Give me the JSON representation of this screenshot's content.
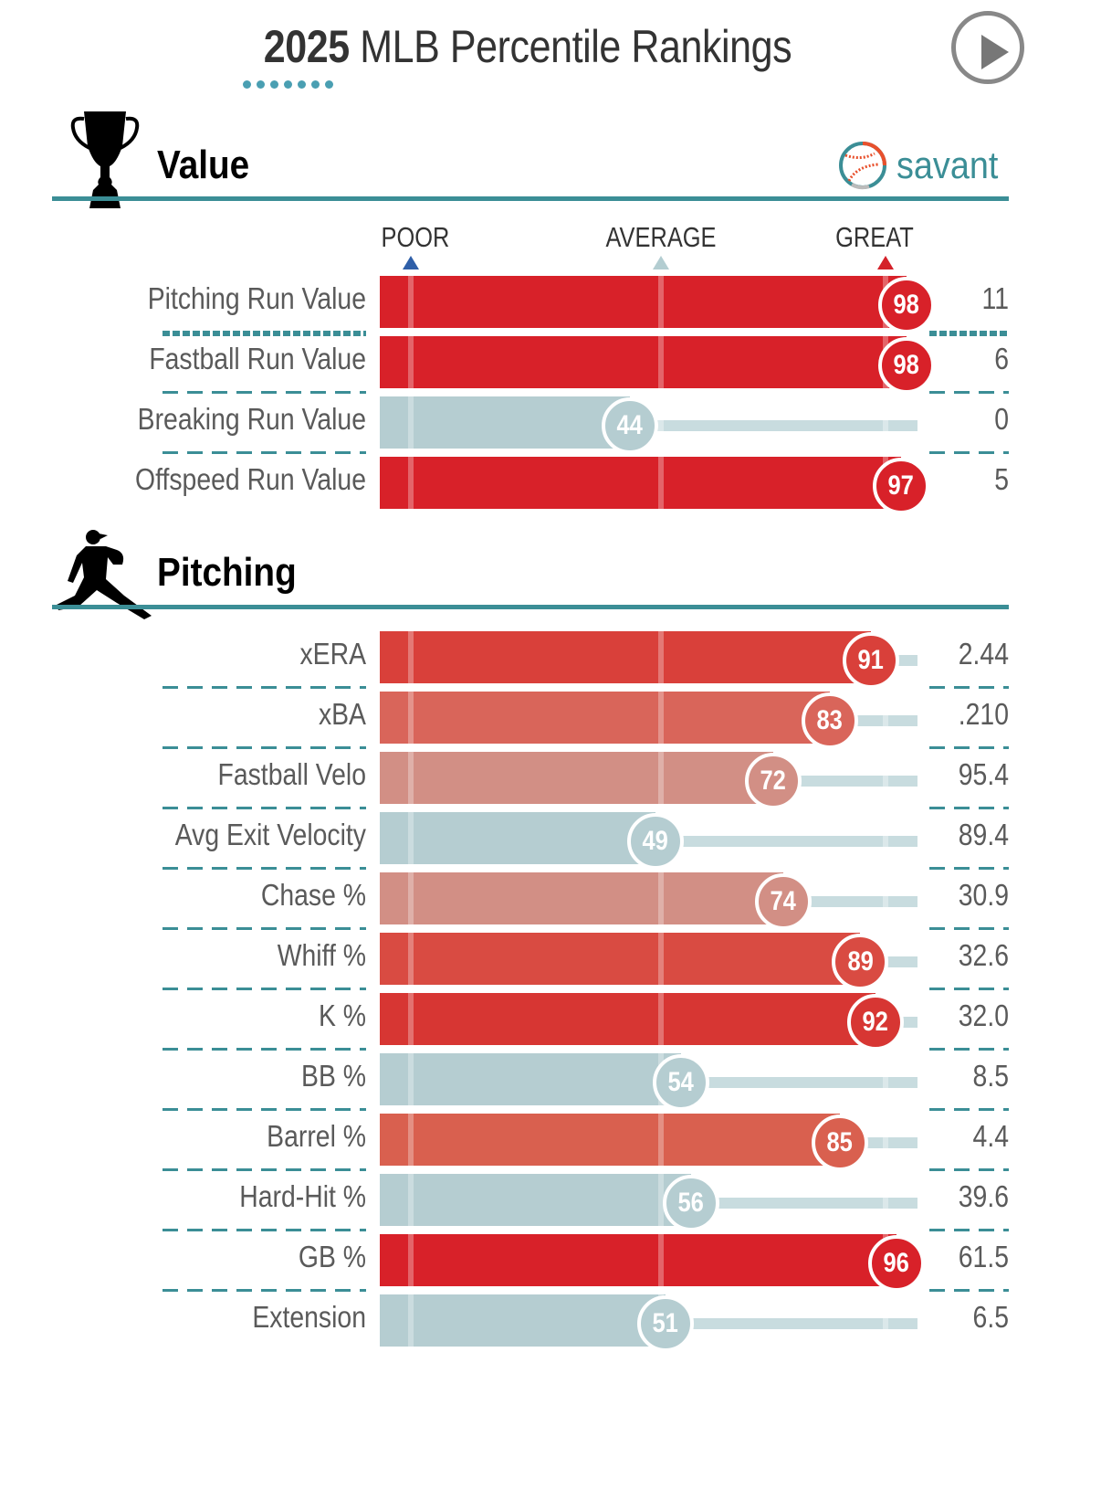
{
  "header": {
    "title_year": "2025",
    "title_rest": "MLB Percentile Rankings",
    "play_button": "play-icon"
  },
  "brand": {
    "name": "savant",
    "icon": "baseball-icon",
    "color": "#3b8e96"
  },
  "scale": {
    "poor": {
      "label": "POOR",
      "color": "#2f5fa8",
      "percentile": 5
    },
    "average": {
      "label": "AVERAGE",
      "color": "#b3cdd1",
      "percentile": 50
    },
    "great": {
      "label": "GREAT",
      "color": "#d42129",
      "percentile": 95
    }
  },
  "colors": {
    "accent": "#3b8e96",
    "great": "#d82129",
    "track": "#c8dcdf"
  },
  "chart_data": [
    {
      "type": "bar",
      "title": "Value",
      "icon": "trophy-icon",
      "xlabel": "Percentile",
      "xlim": [
        0,
        100
      ],
      "categories": [
        "Pitching Run Value",
        "Fastball Run Value",
        "Breaking Run Value",
        "Offspeed Run Value"
      ],
      "percentiles": [
        98,
        98,
        44,
        97
      ],
      "stat_values": [
        "11",
        "6",
        "0",
        "5"
      ],
      "bar_colors": [
        "#d82129",
        "#d82129",
        "#b5cdd1",
        "#d82129"
      ]
    },
    {
      "type": "bar",
      "title": "Pitching",
      "icon": "pitcher-icon",
      "xlabel": "Percentile",
      "xlim": [
        0,
        100
      ],
      "categories": [
        "xERA",
        "xBA",
        "Fastball Velo",
        "Avg Exit Velocity",
        "Chase %",
        "Whiff %",
        "K %",
        "BB %",
        "Barrel %",
        "Hard-Hit %",
        "GB %",
        "Extension"
      ],
      "percentiles": [
        91,
        83,
        72,
        49,
        74,
        89,
        92,
        54,
        85,
        56,
        96,
        51
      ],
      "stat_values": [
        "2.44",
        ".210",
        "95.4",
        "89.4",
        "30.9",
        "32.6",
        "32.0",
        "8.5",
        "4.4",
        "39.6",
        "61.5",
        "6.5"
      ],
      "bar_colors": [
        "#d9403a",
        "#d9655a",
        "#d28f85",
        "#b5cdd1",
        "#d28f85",
        "#d94b42",
        "#d73633",
        "#b5cdd1",
        "#d9604f",
        "#b5cdd1",
        "#d82129",
        "#b5cdd1"
      ]
    }
  ]
}
